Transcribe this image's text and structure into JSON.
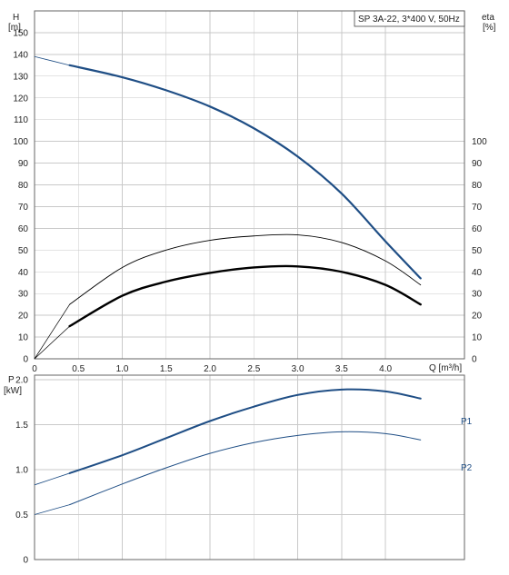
{
  "chart_data": [
    {
      "type": "line",
      "title": "SP 3A-22, 3*400 V, 50Hz",
      "y_label_left": "H",
      "y_unit_left": "[m]",
      "y_label_right": "eta",
      "y_unit_right": "[%]",
      "x_label": "Q [m³/h]",
      "x_ticks": [
        "0",
        "0.5",
        "1.0",
        "1.5",
        "2.0",
        "2.5",
        "3.0",
        "3.5",
        "4.0"
      ],
      "y_ticks_left": [
        "0",
        "10",
        "20",
        "30",
        "40",
        "50",
        "60",
        "70",
        "80",
        "90",
        "100",
        "110",
        "120",
        "130",
        "140",
        "150"
      ],
      "y_ticks_right": [
        "0",
        "10",
        "20",
        "30",
        "40",
        "50",
        "60",
        "70",
        "80",
        "90",
        "100"
      ],
      "xlim": [
        0,
        4.9
      ],
      "ylim": [
        0,
        160
      ],
      "grid": true,
      "colors": {
        "head": "#1f4e85",
        "eta": "#000000"
      },
      "series": [
        {
          "key": "head",
          "x": [
            0.4,
            1.0,
            1.5,
            2.0,
            2.5,
            3.0,
            3.5,
            4.0,
            4.4
          ],
          "y": [
            135,
            129.5,
            123.5,
            116,
            106,
            93,
            76,
            54,
            37
          ],
          "x_ext": [
            0,
            0.4
          ],
          "y_ext": [
            139,
            135
          ]
        },
        {
          "key": "eta_thin",
          "x": [
            0.4,
            1.0,
            1.5,
            2.0,
            2.5,
            3.0,
            3.5,
            4.0,
            4.4
          ],
          "y": [
            25,
            42,
            50,
            54.5,
            56.5,
            57,
            53.5,
            45,
            34
          ],
          "x_ext": [
            0,
            0.4
          ],
          "y_ext": [
            0,
            25
          ]
        },
        {
          "key": "eta_thick",
          "x": [
            0.4,
            1.0,
            1.5,
            2.0,
            2.5,
            3.0,
            3.5,
            4.0,
            4.4
          ],
          "y": [
            15,
            29,
            35.5,
            39.5,
            42,
            42.5,
            40,
            34,
            25
          ],
          "x_ext": [
            0,
            0.4
          ],
          "y_ext": [
            0,
            15
          ]
        }
      ]
    },
    {
      "type": "line",
      "y_label_left": "P",
      "y_unit_left": "[kW]",
      "y_ticks_left": [
        "0",
        "0.5",
        "1.0",
        "1.5",
        "2.0"
      ],
      "xlim": [
        0,
        4.9
      ],
      "ylim": [
        0,
        2.05
      ],
      "grid": true,
      "colors": {
        "P1": "#1f4e85",
        "P2": "#1f4e85"
      },
      "series": [
        {
          "key": "P1",
          "name": "P1",
          "x": [
            0.4,
            1.0,
            1.5,
            2.0,
            2.5,
            3.0,
            3.5,
            4.0,
            4.4
          ],
          "y": [
            0.96,
            1.16,
            1.35,
            1.54,
            1.7,
            1.83,
            1.89,
            1.87,
            1.79
          ],
          "x_ext": [
            0,
            0.4
          ],
          "y_ext": [
            0.83,
            0.96
          ]
        },
        {
          "key": "P2",
          "name": "P2",
          "x": [
            0.4,
            1.0,
            1.5,
            2.0,
            2.5,
            3.0,
            3.5,
            4.0,
            4.4
          ],
          "y": [
            0.61,
            0.84,
            1.02,
            1.18,
            1.3,
            1.38,
            1.42,
            1.4,
            1.33
          ],
          "x_ext": [
            0,
            0.4
          ],
          "y_ext": [
            0.5,
            0.61
          ]
        }
      ]
    }
  ]
}
